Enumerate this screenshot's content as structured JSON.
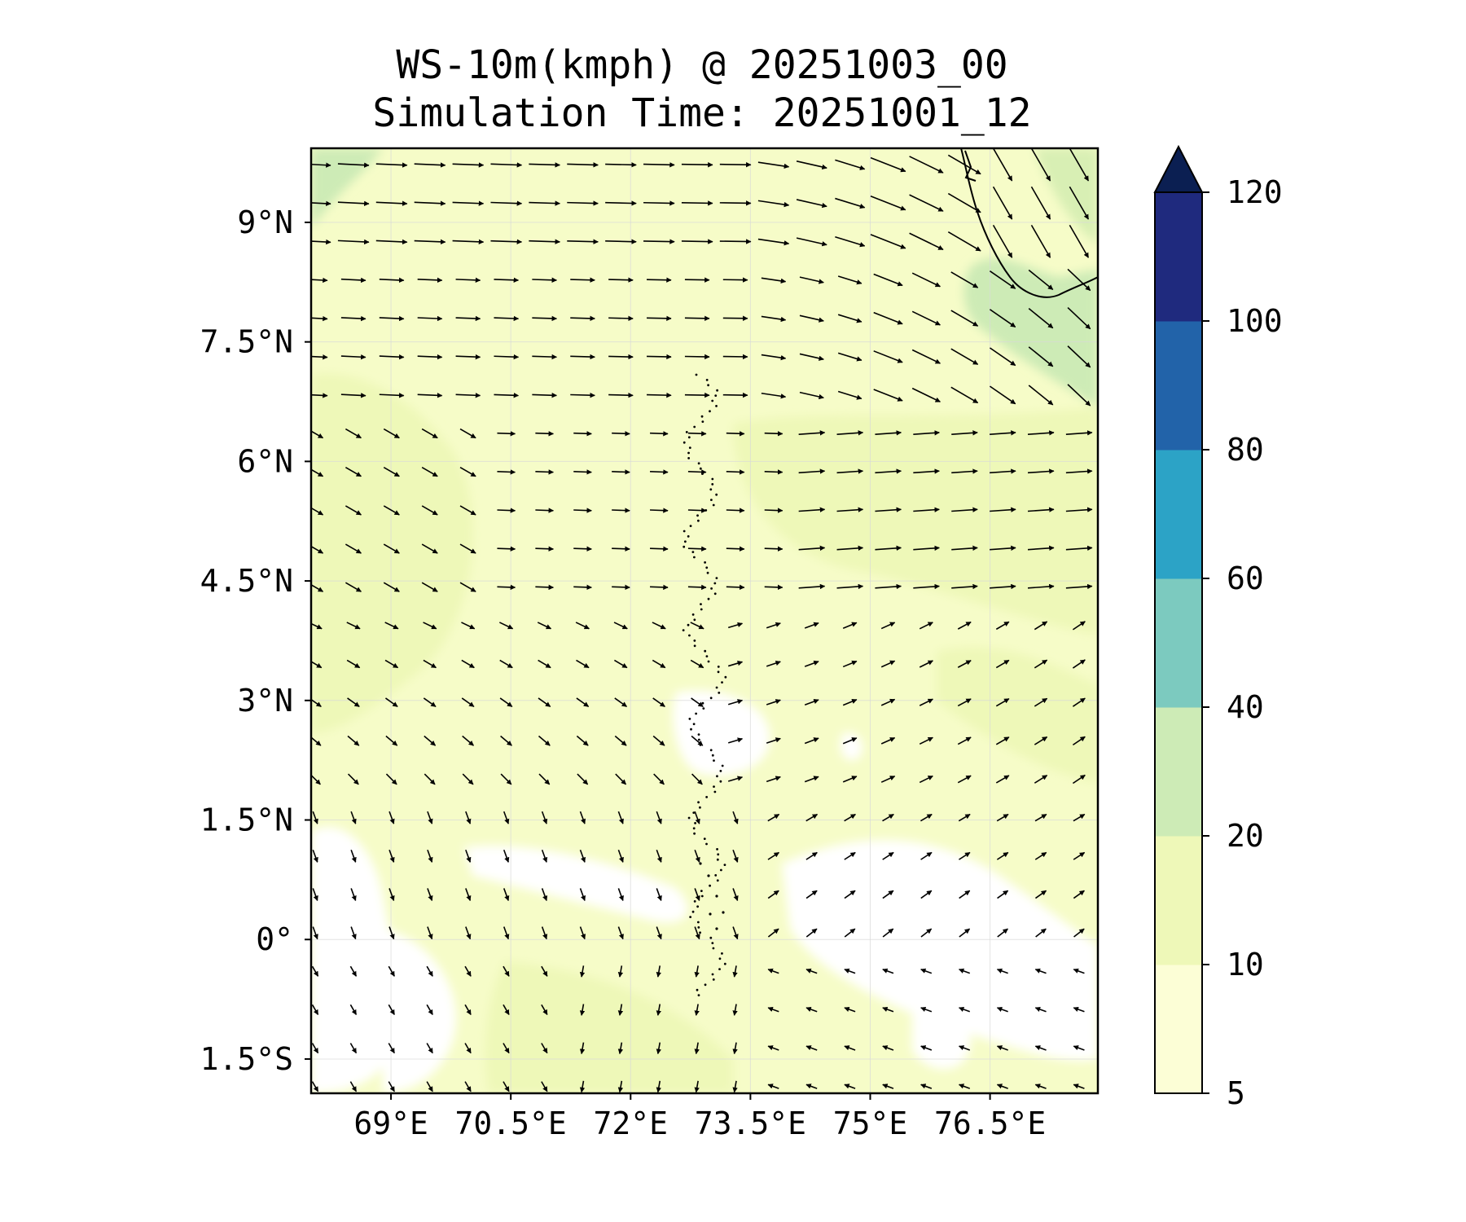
{
  "title": {
    "line1": "WS-10m(kmph) @ 20251003_00",
    "line2": "Simulation Time: 20251001_12"
  },
  "map": {
    "lon_ticks": [
      {
        "value": 69,
        "label": "69°E"
      },
      {
        "value": 70.5,
        "label": "70.5°E"
      },
      {
        "value": 72,
        "label": "72°E"
      },
      {
        "value": 73.5,
        "label": "73.5°E"
      },
      {
        "value": 75,
        "label": "75°E"
      },
      {
        "value": 76.5,
        "label": "76.5°E"
      }
    ],
    "lat_ticks": [
      {
        "value": 9,
        "label": "9°N"
      },
      {
        "value": 7.5,
        "label": "7.5°N"
      },
      {
        "value": 6,
        "label": "6°N"
      },
      {
        "value": 4.5,
        "label": "4.5°N"
      },
      {
        "value": 3,
        "label": "3°N"
      },
      {
        "value": 1.5,
        "label": "1.5°N"
      },
      {
        "value": 0,
        "label": "0°"
      },
      {
        "value": -1.5,
        "label": "1.5°S"
      }
    ],
    "lon_range": [
      68.0,
      77.85
    ],
    "lat_range": [
      -1.93,
      9.93
    ],
    "gridlines": true
  },
  "colorbar": {
    "levels": [
      5,
      10,
      20,
      40,
      60,
      80,
      100,
      120
    ],
    "labels": [
      "5",
      "10",
      "20",
      "40",
      "60",
      "80",
      "100",
      "120"
    ],
    "colors": [
      "#fcfed6",
      "#eef8b8",
      "#cdebb6",
      "#7ccabf",
      "#2ca3c6",
      "#2263a9",
      "#1f2a7e"
    ],
    "extend_color": "#0b1f52",
    "extend": "max"
  },
  "field": {
    "below_min_color": "#ffffff"
  },
  "arrow_color": "#000000"
}
